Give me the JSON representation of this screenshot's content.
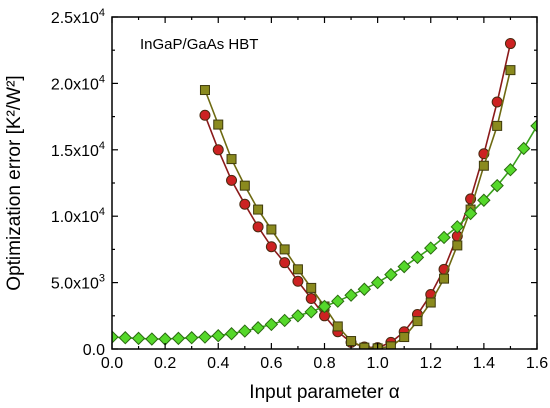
{
  "chart_data": {
    "type": "scatter",
    "annotation": "InGaP/GaAs HBT",
    "xlabel": "Input parameter α",
    "ylabel": "Optimization error [K²/W²]",
    "xlim": [
      0.0,
      1.6
    ],
    "ylim": [
      0,
      25000
    ],
    "grid": false,
    "x_ticks": [
      0.0,
      0.2,
      0.4,
      0.6,
      0.8,
      1.0,
      1.2,
      1.4,
      1.6
    ],
    "x_tick_labels": [
      "0.0",
      "0.2",
      "0.4",
      "0.6",
      "0.8",
      "1.0",
      "1.2",
      "1.4",
      "1.6"
    ],
    "y_ticks": [
      0,
      5000,
      10000,
      15000,
      20000,
      25000
    ],
    "y_tick_labels": [
      {
        "mant": "0.0",
        "exp": ""
      },
      {
        "mant": "5.0x10",
        "exp": "3"
      },
      {
        "mant": "1.0x10",
        "exp": "4"
      },
      {
        "mant": "1.5x10",
        "exp": "4"
      },
      {
        "mant": "2.0x10",
        "exp": "4"
      },
      {
        "mant": "2.5x10",
        "exp": "4"
      }
    ],
    "series": [
      {
        "marker": "circle",
        "color": "#cc2222",
        "edge": "#4a2a10",
        "line": "#8b1a1a",
        "points": [
          [
            0.35,
            17600
          ],
          [
            0.4,
            15000
          ],
          [
            0.45,
            12700
          ],
          [
            0.5,
            10900
          ],
          [
            0.55,
            9200
          ],
          [
            0.6,
            7700
          ],
          [
            0.65,
            6500
          ],
          [
            0.7,
            5100
          ],
          [
            0.75,
            3800
          ],
          [
            0.8,
            2500
          ],
          [
            0.85,
            1300
          ],
          [
            0.9,
            500
          ],
          [
            0.95,
            150
          ],
          [
            1.0,
            100
          ],
          [
            1.05,
            500
          ],
          [
            1.1,
            1300
          ],
          [
            1.15,
            2600
          ],
          [
            1.2,
            4100
          ],
          [
            1.25,
            6000
          ],
          [
            1.3,
            8500
          ],
          [
            1.35,
            11300
          ],
          [
            1.4,
            14700
          ],
          [
            1.45,
            18600
          ],
          [
            1.5,
            23000
          ]
        ]
      },
      {
        "marker": "square",
        "color": "#8a8a1e",
        "edge": "#3e3a0c",
        "line": "#6e6a12",
        "points": [
          [
            0.35,
            19500
          ],
          [
            0.4,
            16900
          ],
          [
            0.45,
            14300
          ],
          [
            0.5,
            12300
          ],
          [
            0.55,
            10500
          ],
          [
            0.6,
            9000
          ],
          [
            0.65,
            7500
          ],
          [
            0.7,
            6000
          ],
          [
            0.75,
            4600
          ],
          [
            0.8,
            3200
          ],
          [
            0.85,
            1700
          ],
          [
            0.9,
            600
          ],
          [
            0.95,
            100
          ],
          [
            1.0,
            50
          ],
          [
            1.05,
            200
          ],
          [
            1.1,
            900
          ],
          [
            1.15,
            2100
          ],
          [
            1.2,
            3500
          ],
          [
            1.25,
            5300
          ],
          [
            1.3,
            7800
          ],
          [
            1.35,
            10500
          ],
          [
            1.4,
            13800
          ],
          [
            1.45,
            16800
          ],
          [
            1.5,
            21000
          ]
        ]
      },
      {
        "marker": "diamond",
        "color": "#55d82a",
        "edge": "#2a6a10",
        "line": "#3aa01c",
        "points": [
          [
            0.0,
            900
          ],
          [
            0.05,
            850
          ],
          [
            0.1,
            800
          ],
          [
            0.15,
            750
          ],
          [
            0.2,
            750
          ],
          [
            0.25,
            800
          ],
          [
            0.3,
            850
          ],
          [
            0.35,
            900
          ],
          [
            0.4,
            1000
          ],
          [
            0.45,
            1150
          ],
          [
            0.5,
            1350
          ],
          [
            0.55,
            1600
          ],
          [
            0.6,
            1850
          ],
          [
            0.65,
            2150
          ],
          [
            0.7,
            2500
          ],
          [
            0.75,
            2800
          ],
          [
            0.8,
            3200
          ],
          [
            0.85,
            3600
          ],
          [
            0.9,
            4050
          ],
          [
            0.95,
            4500
          ],
          [
            1.0,
            5000
          ],
          [
            1.05,
            5600
          ],
          [
            1.1,
            6200
          ],
          [
            1.15,
            6900
          ],
          [
            1.2,
            7600
          ],
          [
            1.25,
            8400
          ],
          [
            1.3,
            9200
          ],
          [
            1.35,
            10200
          ],
          [
            1.4,
            11200
          ],
          [
            1.45,
            12300
          ],
          [
            1.5,
            13500
          ],
          [
            1.55,
            15100
          ],
          [
            1.6,
            16800
          ]
        ]
      }
    ]
  }
}
